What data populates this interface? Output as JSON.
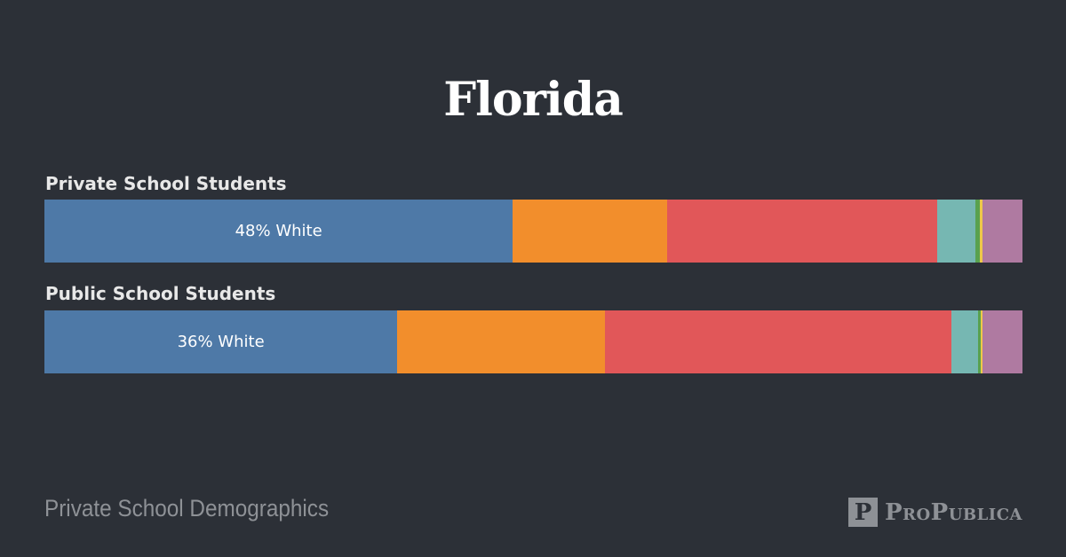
{
  "chart_data": {
    "type": "bar",
    "stacked": true,
    "orientation": "horizontal",
    "title": "Florida",
    "colors": [
      "#4e79a7",
      "#f28e2c",
      "#e15759",
      "#76b7b2",
      "#59a14f",
      "#edc949",
      "#af7aa1"
    ],
    "series": [
      {
        "name": "Private School Students",
        "values": [
          47.9,
          15.8,
          27.6,
          3.9,
          0.45,
          0.27,
          4.1
        ],
        "label": "48% White"
      },
      {
        "name": "Public School Students",
        "values": [
          36.1,
          21.2,
          35.5,
          2.7,
          0.27,
          0.18,
          4.1
        ],
        "label": "36% White"
      }
    ],
    "xlim": [
      0,
      100
    ]
  },
  "footer": {
    "caption": "Private School Demographics",
    "logo_mark": "P",
    "logo_text": "ProPublica"
  }
}
